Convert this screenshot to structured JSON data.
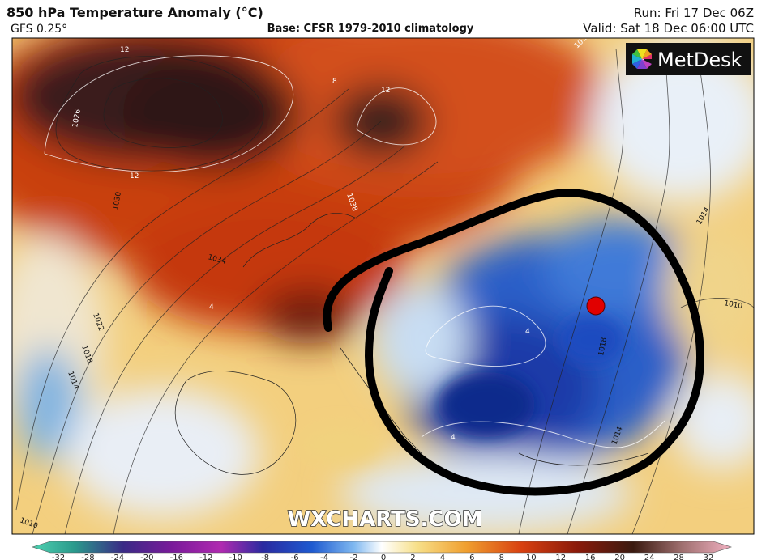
{
  "header": {
    "title": "850 hPa Temperature Anomaly (°C)",
    "model": "GFS 0.25°",
    "base": "Base: CFSR 1979-2010 climatology",
    "run": "Run: Fri 17 Dec 06Z",
    "valid": "Valid: Sat 18 Dec 06:00 UTC"
  },
  "logo": "MetDesk",
  "watermark": "WXCHARTS.COM",
  "contour_labels": [
    "12",
    "1026",
    "12",
    "1030",
    "8",
    "12",
    "1038",
    "1034",
    "1020",
    "1022",
    "1018",
    "1014",
    "1010",
    "4",
    "4",
    "1018",
    "1014",
    "1014",
    "1010",
    "4"
  ],
  "colorbar": {
    "labels": [
      -32,
      -28,
      -24,
      -20,
      -16,
      -12,
      -10,
      -8,
      -6,
      -4,
      -2,
      0,
      2,
      4,
      6,
      8,
      10,
      12,
      16,
      20,
      24,
      28,
      32
    ]
  }
}
